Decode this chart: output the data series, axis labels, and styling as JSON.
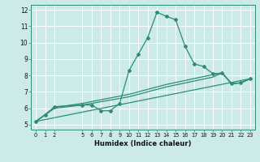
{
  "xlabel": "Humidex (Indice chaleur)",
  "bg_color": "#cceae8",
  "grid_color": "#ffffff",
  "line_color": "#2e8b7a",
  "xlim": [
    -0.5,
    23.5
  ],
  "ylim": [
    4.7,
    12.3
  ],
  "xtick_vals": [
    0,
    1,
    2,
    5,
    6,
    7,
    8,
    9,
    10,
    11,
    12,
    13,
    14,
    15,
    16,
    17,
    18,
    19,
    20,
    21,
    22,
    23
  ],
  "ytick_vals": [
    5,
    6,
    7,
    8,
    9,
    10,
    11,
    12
  ],
  "line1_x": [
    0,
    1,
    2,
    5,
    6,
    7,
    8,
    9,
    10,
    11,
    12,
    13,
    14,
    15,
    16,
    17,
    18,
    19,
    20,
    21,
    22,
    23
  ],
  "line1_y": [
    5.2,
    5.6,
    6.1,
    6.2,
    6.2,
    5.85,
    5.85,
    6.3,
    8.3,
    9.3,
    10.3,
    11.85,
    11.6,
    11.4,
    9.8,
    8.7,
    8.55,
    8.1,
    8.15,
    7.5,
    7.55,
    7.8
  ],
  "line2_x": [
    0,
    2,
    5,
    10,
    14,
    19,
    20,
    21,
    22,
    23
  ],
  "line2_y": [
    5.2,
    6.05,
    6.3,
    6.85,
    7.45,
    8.05,
    8.15,
    7.5,
    7.55,
    7.8
  ],
  "line3_x": [
    0,
    2,
    5,
    10,
    14,
    19,
    20,
    21,
    22,
    23
  ],
  "line3_y": [
    5.2,
    6.0,
    6.2,
    6.7,
    7.3,
    7.9,
    8.15,
    7.5,
    7.55,
    7.8
  ],
  "line4_x": [
    0,
    23
  ],
  "line4_y": [
    5.2,
    7.8
  ]
}
